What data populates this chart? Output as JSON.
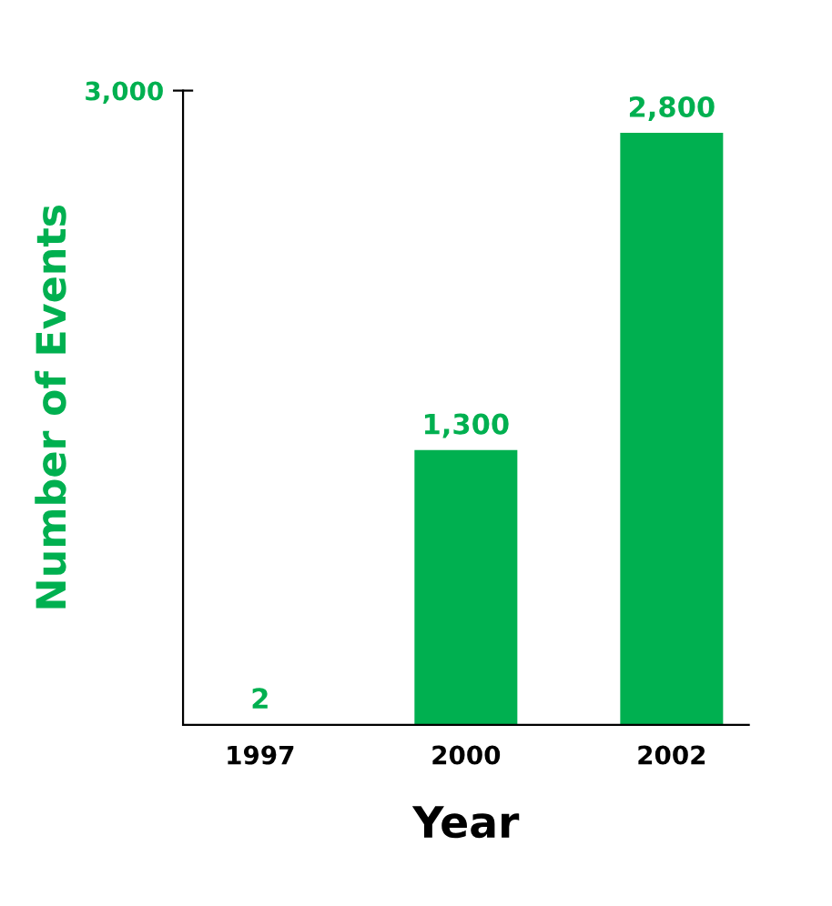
{
  "chart_data": {
    "type": "bar",
    "xlabel": "Year",
    "ylabel": "Number of Events",
    "categories": [
      "1997",
      "2000",
      "2002"
    ],
    "values": [
      2,
      1300,
      2800
    ],
    "value_labels": [
      "2",
      "1,300",
      "2,800"
    ],
    "color": "#00b050",
    "ylim": [
      0,
      3000
    ],
    "yticks": [
      {
        "value": 3000,
        "label": "3,000"
      }
    ],
    "grid": false,
    "legend": false
  }
}
